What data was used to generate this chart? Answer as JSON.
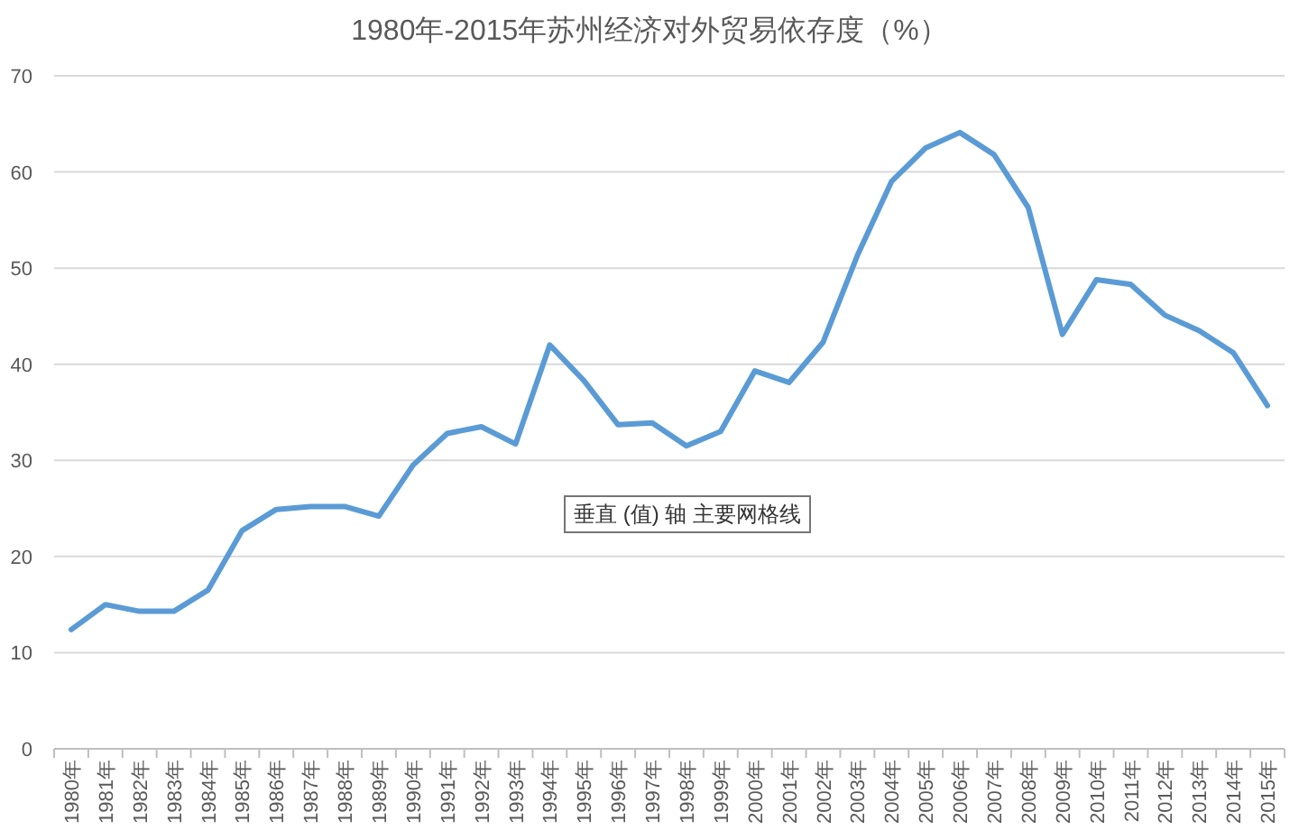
{
  "chart_data": {
    "type": "line",
    "title": "1980年-2015年苏州经济对外贸易依存度（%）",
    "categories": [
      "1980年",
      "1981年",
      "1982年",
      "1983年",
      "1984年",
      "1985年",
      "1986年",
      "1987年",
      "1988年",
      "1989年",
      "1990年",
      "1991年",
      "1992年",
      "1993年",
      "1994年",
      "1995年",
      "1996年",
      "1997年",
      "1998年",
      "1999年",
      "2000年",
      "2001年",
      "2002年",
      "2003年",
      "2004年",
      "2005年",
      "2006年",
      "2007年",
      "2008年",
      "2009年",
      "2010年",
      "2011年",
      "2012年",
      "2013年",
      "2014年",
      "2015年"
    ],
    "series": [
      {
        "color": "#5b9bd5",
        "values": [
          12.4,
          15.0,
          14.3,
          14.3,
          16.5,
          22.7,
          24.9,
          25.2,
          25.2,
          24.2,
          29.5,
          32.8,
          33.5,
          31.7,
          42.0,
          38.3,
          33.7,
          33.9,
          31.5,
          33.0,
          39.3,
          38.1,
          42.3,
          51.3,
          59.0,
          62.5,
          64.1,
          61.8,
          56.3,
          43.1,
          48.8,
          48.3,
          45.1,
          43.5,
          41.2,
          35.7
        ]
      }
    ],
    "ylim": [
      0,
      70
    ],
    "yticks": [
      0,
      10,
      20,
      30,
      40,
      50,
      60,
      70
    ],
    "grid": "y",
    "marker": "none",
    "line_style": "solid",
    "annotations": [
      "垂直 (值) 轴 主要网格线"
    ]
  }
}
